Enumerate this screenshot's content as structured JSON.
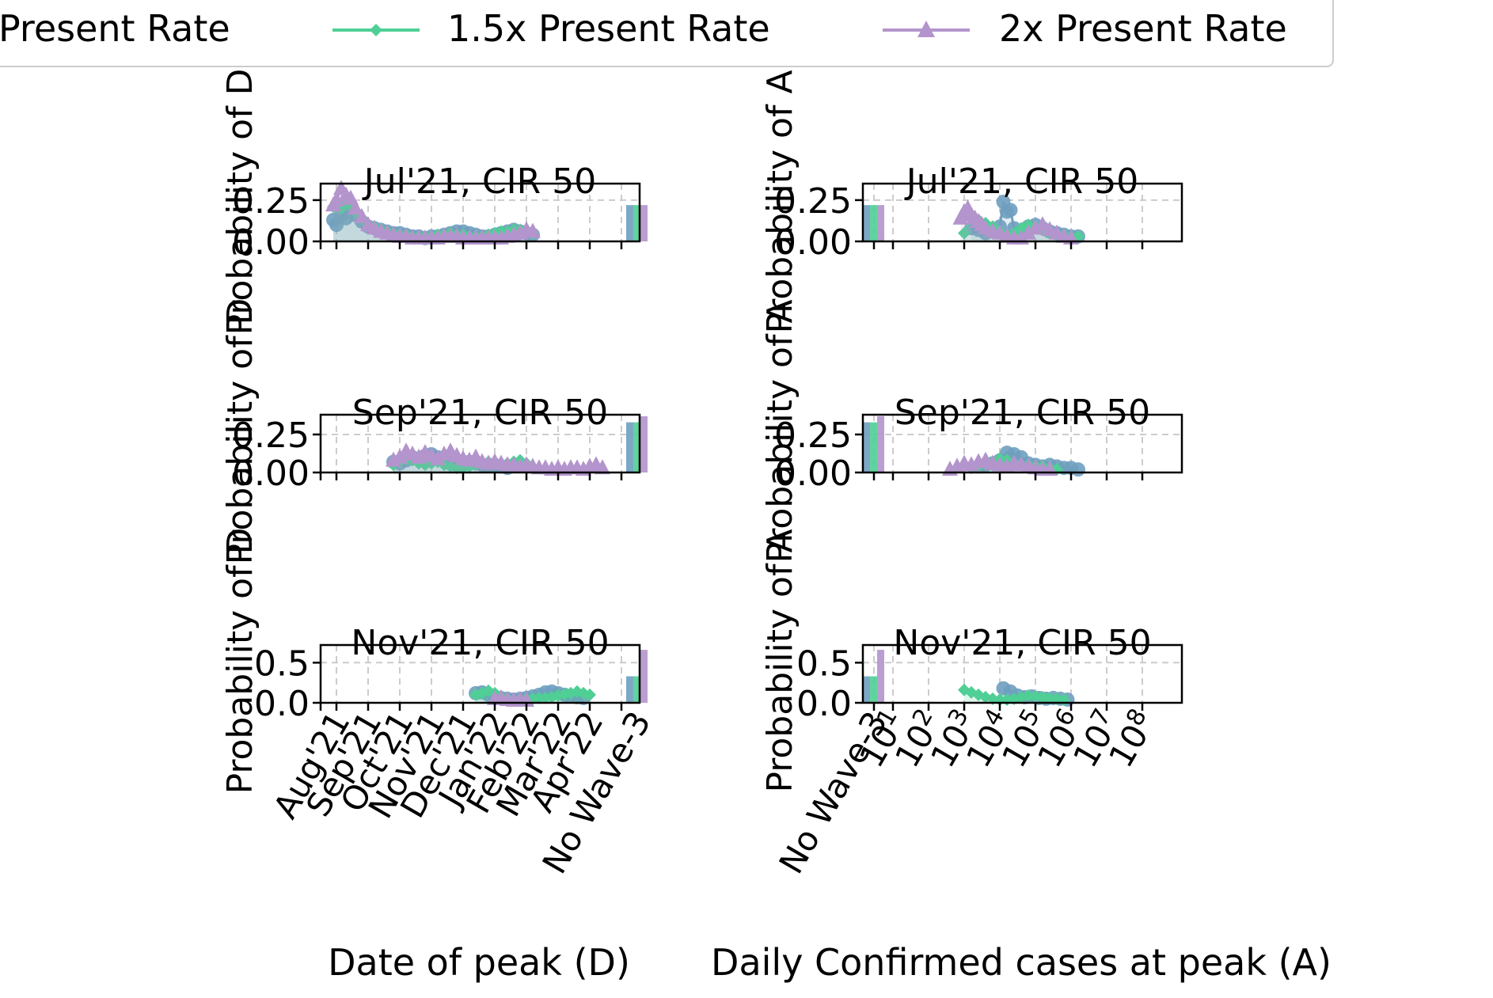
{
  "legend": {
    "placement": "top",
    "entries": [
      {
        "label": "Present Rate",
        "color": "#6f9fbf",
        "marker": "circle"
      },
      {
        "label": "1.5x Present Rate",
        "color": "#4fcf95",
        "marker": "diamond"
      },
      {
        "label": "2x Present Rate",
        "color": "#b394cc",
        "marker": "triangle"
      }
    ]
  },
  "column_labels": {
    "left_x": "Date of peak (D)",
    "right_x": "Daily Confirmed cases at peak (A)",
    "left_y": "Probability of D",
    "right_y": "Probability of A"
  },
  "chart_data": [
    {
      "type": "line",
      "title": "Jul'21, CIR 50",
      "ylabel": "Probability of D",
      "ylim": [
        0,
        0.35
      ],
      "yticks": [
        "0.00",
        "0.25"
      ],
      "grid": true,
      "x_kind": "date",
      "x_ticks": [
        "Aug'21",
        "Sep'21",
        "Oct'21",
        "Nov'21",
        "Dec'21",
        "Jan'22",
        "Feb'22",
        "Mar'22",
        "Apr'22",
        "No Wave-3"
      ],
      "series": [
        {
          "name": "Present Rate",
          "x": [
            -0.1,
            0,
            0.15,
            0.3,
            0.45,
            0.6,
            0.8,
            1,
            1.2,
            1.4,
            1.6,
            1.8,
            2,
            2.2,
            2.4,
            2.6,
            2.8,
            3,
            3.2,
            3.4,
            3.6,
            3.8,
            4,
            4.2,
            4.4,
            4.6,
            4.8,
            5,
            5.2,
            5.4,
            5.6,
            5.8,
            6,
            6.2
          ],
          "y": [
            0.13,
            0.1,
            0.16,
            0.14,
            0.19,
            0.16,
            0.12,
            0.09,
            0.08,
            0.07,
            0.06,
            0.05,
            0.05,
            0.04,
            0.03,
            0.03,
            0.02,
            0.03,
            0.03,
            0.04,
            0.05,
            0.06,
            0.06,
            0.05,
            0.04,
            0.03,
            0.03,
            0.04,
            0.05,
            0.06,
            0.07,
            0.06,
            0.05,
            0.04
          ],
          "no_wave": 0.22
        },
        {
          "name": "1.5x Present Rate",
          "x": [
            -0.1,
            0,
            0.15,
            0.3,
            0.45,
            0.6,
            0.8,
            1,
            1.2,
            1.4,
            1.6,
            1.8,
            2,
            2.2,
            2.4,
            2.6,
            2.8,
            3,
            3.2,
            3.4,
            3.6,
            3.8,
            4,
            4.2,
            4.4,
            4.6,
            4.8,
            5,
            5.2,
            5.4,
            5.6,
            5.8,
            6,
            6.2
          ],
          "y": [
            0.21,
            0.24,
            0.2,
            0.25,
            0.22,
            0.18,
            0.14,
            0.1,
            0.09,
            0.07,
            0.06,
            0.05,
            0.04,
            0.04,
            0.03,
            0.03,
            0.03,
            0.03,
            0.04,
            0.04,
            0.05,
            0.04,
            0.04,
            0.03,
            0.03,
            0.03,
            0.04,
            0.05,
            0.06,
            0.06,
            0.07,
            0.07,
            0.06,
            0.05
          ],
          "no_wave": 0.22
        },
        {
          "name": "2x Present Rate",
          "x": [
            -0.1,
            0,
            0.15,
            0.3,
            0.45,
            0.6,
            0.8,
            1,
            1.2,
            1.4,
            1.6,
            1.8,
            2,
            2.2,
            2.4,
            2.6,
            2.8,
            3,
            3.2,
            3.4,
            3.6,
            3.8,
            4,
            4.2,
            4.4,
            4.6,
            4.8,
            5,
            5.2,
            5.4,
            5.6,
            5.8,
            6,
            6.2
          ],
          "y": [
            0.22,
            0.25,
            0.32,
            0.28,
            0.26,
            0.2,
            0.15,
            0.1,
            0.08,
            0.06,
            0.05,
            0.04,
            0.03,
            0.03,
            0.02,
            0.02,
            0.02,
            0.02,
            0.02,
            0.03,
            0.03,
            0.03,
            0.02,
            0.02,
            0.02,
            0.02,
            0.02,
            0.02,
            0.02,
            0.03,
            0.04,
            0.05,
            0.07,
            0.06
          ],
          "no_wave": 0.22
        }
      ]
    },
    {
      "type": "line",
      "title": "Sep'21, CIR 50",
      "ylabel": "Probability of D",
      "ylim": [
        0,
        0.38
      ],
      "yticks": [
        "0.00",
        "0.25"
      ],
      "grid": true,
      "x_kind": "date",
      "x_ticks": [
        "Aug'21",
        "Sep'21",
        "Oct'21",
        "Nov'21",
        "Dec'21",
        "Jan'22",
        "Feb'22",
        "Mar'22",
        "Apr'22",
        "No Wave-3"
      ],
      "series": [
        {
          "name": "Present Rate",
          "x": [
            1.8,
            2,
            2.2,
            2.4,
            2.6,
            2.8,
            3,
            3.2,
            3.4,
            3.6,
            3.8,
            4,
            4.2,
            4.4,
            4.6,
            4.8,
            5,
            5.2,
            5.4
          ],
          "y": [
            0.07,
            0.06,
            0.08,
            0.1,
            0.09,
            0.11,
            0.12,
            0.1,
            0.08,
            0.06,
            0.05,
            0.06,
            0.07,
            0.06,
            0.05,
            0.04,
            0.05,
            0.04,
            0.03
          ],
          "no_wave": 0.33
        },
        {
          "name": "1.5x Present Rate",
          "x": [
            1.8,
            2,
            2.2,
            2.4,
            2.6,
            2.8,
            3,
            3.2,
            3.4,
            3.6,
            3.8,
            4,
            4.2,
            4.4,
            4.6,
            4.8,
            5,
            5.2,
            5.4,
            5.6,
            5.8,
            6
          ],
          "y": [
            0.05,
            0.07,
            0.09,
            0.08,
            0.06,
            0.05,
            0.06,
            0.07,
            0.05,
            0.04,
            0.03,
            0.03,
            0.04,
            0.05,
            0.06,
            0.07,
            0.06,
            0.05,
            0.06,
            0.07,
            0.08,
            0.06
          ],
          "no_wave": 0.33
        },
        {
          "name": "2x Present Rate",
          "x": [
            1.8,
            2,
            2.2,
            2.4,
            2.6,
            2.8,
            3,
            3.2,
            3.4,
            3.6,
            3.8,
            4,
            4.2,
            4.4,
            4.6,
            4.8,
            5,
            5.2,
            5.4,
            5.6,
            5.8,
            6,
            6.2,
            6.4,
            6.6,
            6.8,
            7,
            7.2,
            7.4,
            7.6,
            7.8,
            8,
            8.2,
            8.4
          ],
          "y": [
            0.08,
            0.1,
            0.14,
            0.12,
            0.1,
            0.13,
            0.11,
            0.09,
            0.12,
            0.14,
            0.11,
            0.09,
            0.08,
            0.1,
            0.07,
            0.06,
            0.07,
            0.06,
            0.05,
            0.05,
            0.04,
            0.05,
            0.04,
            0.03,
            0.03,
            0.02,
            0.03,
            0.02,
            0.03,
            0.03,
            0.02,
            0.04,
            0.05,
            0.03
          ],
          "no_wave": 0.37
        }
      ]
    },
    {
      "type": "line",
      "title": "Nov'21, CIR 50",
      "ylabel": "Probability of D",
      "ylim": [
        0,
        0.72
      ],
      "yticks": [
        "0.0",
        "0.5"
      ],
      "grid": true,
      "x_kind": "date",
      "x_ticks": [
        "Aug'21",
        "Sep'21",
        "Oct'21",
        "Nov'21",
        "Dec'21",
        "Jan'22",
        "Feb'22",
        "Mar'22",
        "Apr'22",
        "No Wave-3"
      ],
      "series": [
        {
          "name": "Present Rate",
          "x": [
            4.4,
            4.6,
            4.8,
            5,
            5.2,
            5.4,
            5.6,
            5.8,
            6,
            6.2,
            6.4,
            6.6,
            6.8,
            7,
            7.2,
            7.4,
            7.6,
            7.8
          ],
          "y": [
            0.12,
            0.13,
            0.1,
            0.08,
            0.06,
            0.05,
            0.04,
            0.05,
            0.06,
            0.08,
            0.1,
            0.13,
            0.14,
            0.12,
            0.1,
            0.08,
            0.07,
            0.06
          ],
          "no_wave": 0.33
        },
        {
          "name": "1.5x Present Rate",
          "x": [
            4.4,
            4.6,
            4.8,
            5,
            5.2,
            5.4,
            5.6,
            5.8,
            6,
            6.2,
            6.4,
            6.6,
            6.8,
            7,
            7.2,
            7.4,
            7.6,
            7.8,
            8
          ],
          "y": [
            0.1,
            0.12,
            0.15,
            0.12,
            0.08,
            0.05,
            0.04,
            0.04,
            0.05,
            0.05,
            0.06,
            0.06,
            0.07,
            0.09,
            0.11,
            0.12,
            0.14,
            0.12,
            0.1
          ],
          "no_wave": 0.33
        },
        {
          "name": "2x Present Rate",
          "x": [
            5,
            5.2,
            5.4,
            5.6,
            5.8,
            6
          ],
          "y": [
            0.05,
            0.06,
            0.04,
            0.03,
            0.04,
            0.03
          ],
          "no_wave": 0.66
        }
      ]
    },
    {
      "type": "line",
      "title": "Jul'21, CIR 50",
      "ylabel": "Probability of A",
      "ylim": [
        0,
        0.35
      ],
      "yticks": [
        "0.00",
        "0.25"
      ],
      "grid": true,
      "x_kind": "log10",
      "x_ticks": [
        "No Wave-3",
        "10^1",
        "10^2",
        "10^3",
        "10^4",
        "10^5",
        "10^6",
        "10^7",
        "10^8"
      ],
      "series": [
        {
          "name": "Present Rate",
          "x": [
            3.2,
            3.4,
            3.6,
            3.8,
            4,
            4.1,
            4.2,
            4.3,
            4.4,
            4.6,
            4.8,
            5,
            5.2,
            5.4,
            5.6,
            5.8,
            6,
            6.2
          ],
          "y": [
            0.08,
            0.07,
            0.05,
            0.06,
            0.09,
            0.24,
            0.18,
            0.19,
            0.08,
            0.06,
            0.09,
            0.1,
            0.08,
            0.06,
            0.05,
            0.04,
            0.03,
            0.03
          ],
          "no_wave": 0.22
        },
        {
          "name": "1.5x Present Rate",
          "x": [
            3,
            3.2,
            3.4,
            3.6,
            3.8,
            4,
            4.2,
            4.4,
            4.6,
            4.8,
            5,
            5.2,
            5.4,
            5.6,
            5.8,
            6,
            6.2
          ],
          "y": [
            0.05,
            0.15,
            0.13,
            0.11,
            0.09,
            0.06,
            0.04,
            0.05,
            0.08,
            0.1,
            0.09,
            0.07,
            0.05,
            0.04,
            0.04,
            0.03,
            0.03
          ],
          "no_wave": 0.22
        },
        {
          "name": "2x Present Rate",
          "x": [
            2.9,
            3,
            3.1,
            3.2,
            3.3,
            3.4,
            3.5,
            3.6,
            3.8,
            4,
            4.2,
            4.4,
            4.6,
            4.8,
            5,
            5.2,
            5.4,
            5.6,
            5.8,
            6
          ],
          "y": [
            0.14,
            0.18,
            0.2,
            0.16,
            0.14,
            0.12,
            0.1,
            0.08,
            0.06,
            0.05,
            0.03,
            0.02,
            0.02,
            0.05,
            0.08,
            0.1,
            0.07,
            0.05,
            0.03,
            0.02
          ],
          "no_wave": 0.22
        }
      ]
    },
    {
      "type": "line",
      "title": "Sep'21, CIR 50",
      "ylabel": "Probability of A",
      "ylim": [
        0,
        0.38
      ],
      "yticks": [
        "0.00",
        "0.25"
      ],
      "grid": true,
      "x_kind": "log10",
      "x_ticks": [
        "No Wave-3",
        "10^1",
        "10^2",
        "10^3",
        "10^4",
        "10^5",
        "10^6",
        "10^7",
        "10^8"
      ],
      "series": [
        {
          "name": "Present Rate",
          "x": [
            3.4,
            3.6,
            3.8,
            4,
            4.2,
            4.4,
            4.6,
            4.8,
            5,
            5.2,
            5.4,
            5.6,
            5.8,
            6,
            6.2
          ],
          "y": [
            0.04,
            0.05,
            0.06,
            0.08,
            0.13,
            0.12,
            0.1,
            0.06,
            0.05,
            0.04,
            0.05,
            0.04,
            0.03,
            0.03,
            0.02
          ],
          "no_wave": 0.33
        },
        {
          "name": "1.5x Present Rate",
          "x": [
            3.2,
            3.4,
            3.6,
            3.8,
            4,
            4.2,
            4.4,
            4.6,
            4.8,
            5,
            5.2,
            5.4,
            5.6
          ],
          "y": [
            0.03,
            0.04,
            0.06,
            0.07,
            0.09,
            0.08,
            0.06,
            0.05,
            0.05,
            0.04,
            0.04,
            0.03,
            0.02
          ],
          "no_wave": 0.33
        },
        {
          "name": "2x Present Rate",
          "x": [
            2.6,
            2.8,
            3,
            3.2,
            3.4,
            3.6,
            3.8,
            4,
            4.2,
            4.4,
            4.6,
            4.8,
            5,
            5.2,
            5.4
          ],
          "y": [
            0.02,
            0.04,
            0.06,
            0.05,
            0.07,
            0.08,
            0.06,
            0.05,
            0.04,
            0.06,
            0.05,
            0.04,
            0.03,
            0.02,
            0.02
          ],
          "no_wave": 0.37
        }
      ]
    },
    {
      "type": "line",
      "title": "Nov'21, CIR 50",
      "ylabel": "Probability of A",
      "ylim": [
        0,
        0.72
      ],
      "yticks": [
        "0.0",
        "0.5"
      ],
      "grid": true,
      "x_kind": "log10",
      "x_ticks": [
        "No Wave-3",
        "10^1",
        "10^2",
        "10^3",
        "10^4",
        "10^5",
        "10^6",
        "10^7",
        "10^8"
      ],
      "series": [
        {
          "name": "Present Rate",
          "x": [
            4.1,
            4.3,
            4.5,
            4.7,
            4.9,
            5.1,
            5.3,
            5.5,
            5.7,
            5.9
          ],
          "y": [
            0.18,
            0.14,
            0.09,
            0.07,
            0.08,
            0.06,
            0.05,
            0.06,
            0.05,
            0.04
          ],
          "no_wave": 0.33
        },
        {
          "name": "1.5x Present Rate",
          "x": [
            3,
            3.2,
            3.4,
            3.6,
            3.8,
            4,
            4.2,
            4.4,
            4.6,
            4.8,
            5,
            5.2,
            5.4,
            5.6,
            5.8
          ],
          "y": [
            0.16,
            0.13,
            0.1,
            0.07,
            0.05,
            0.04,
            0.04,
            0.05,
            0.07,
            0.09,
            0.08,
            0.07,
            0.06,
            0.05,
            0.04
          ],
          "no_wave": 0.33
        },
        {
          "name": "2x Present Rate",
          "x": [],
          "y": [],
          "no_wave": 0.66
        }
      ]
    }
  ]
}
